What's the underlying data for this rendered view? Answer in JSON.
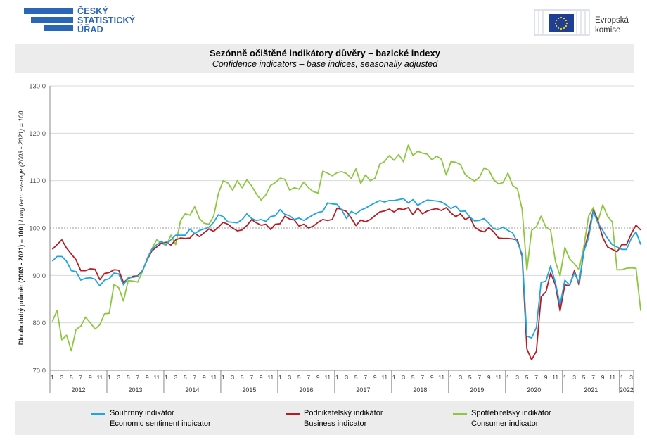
{
  "header": {
    "csu_logo_lines": [
      "ČESKÝ",
      "STATISTICKÝ",
      "ÚŘAD"
    ],
    "eu_logo_lines": [
      "Evropská",
      "komise"
    ]
  },
  "colors": {
    "economic": "#1fa6e0",
    "business": "#b71c24",
    "consumer": "#8dc63f",
    "grid": "#d9d9d9",
    "axis": "#888888"
  },
  "chart_data": {
    "type": "line",
    "title": "Sezónně očištěné indikátory důvěry – bazické indexy",
    "subtitle": "Confidence indicators – base indices, seasonally adjusted",
    "ylabel": "Dlouhodobý průměr (2003 - 2021) = 100",
    "ylabel_en": "Long term average (2003 - 2021) = 100",
    "ylim": [
      70,
      130
    ],
    "yticks": [
      "70,0",
      "80,0",
      "90,0",
      "100,0",
      "110,0",
      "120,0",
      "130,0"
    ],
    "reference_line": 100,
    "x_start": "2012-01",
    "x_end": "2022-03",
    "month_ticks": [
      "1",
      "3",
      "5",
      "7",
      "9",
      "11"
    ],
    "years": [
      "2012",
      "2013",
      "2014",
      "2015",
      "2016",
      "2017",
      "2018",
      "2019",
      "2020",
      "2021",
      "2022"
    ],
    "series": [
      {
        "name": "Souhrnný indikátor",
        "name_en": "Economic sentiment indicator",
        "color": "#1fa6e0",
        "values": [
          93.0,
          94.0,
          94.0,
          93.0,
          91.0,
          90.8,
          89.0,
          89.4,
          89.5,
          89.2,
          87.8,
          89.0,
          89.3,
          90.5,
          90.3,
          88.0,
          89.5,
          89.6,
          89.8,
          90.9,
          93.5,
          95.5,
          96.5,
          97.2,
          96.5,
          97.5,
          98.5,
          98.5,
          98.5,
          99.8,
          98.8,
          99.5,
          99.8,
          100.2,
          101.2,
          102.8,
          102.4,
          101.3,
          101.2,
          101.1,
          101.8,
          103.0,
          102.0,
          101.6,
          101.8,
          101.4,
          102.4,
          102.6,
          103.9,
          102.9,
          102.6,
          101.8,
          102.1,
          101.6,
          102.2,
          102.8,
          103.3,
          103.5,
          105.3,
          105.1,
          105.0,
          103.8,
          102.0,
          103.5,
          103.0,
          103.8,
          104.2,
          104.8,
          105.3,
          105.8,
          105.5,
          105.8,
          105.8,
          106.0,
          106.2,
          105.3,
          106.0,
          104.8,
          105.4,
          105.9,
          105.8,
          105.7,
          105.5,
          104.9,
          104.1,
          104.7,
          103.5,
          103.6,
          102.3,
          101.5,
          101.6,
          102.0,
          101.0,
          99.8,
          99.7,
          100.2,
          99.5,
          99.0,
          97.0,
          94.5,
          77.2,
          76.8,
          79.0,
          88.5,
          88.8,
          92.0,
          88.5,
          83.8,
          89.0,
          88.0,
          90.5,
          88.5,
          95.0,
          98.0,
          103.5,
          101.0,
          99.5,
          97.8,
          96.5,
          96.0,
          95.5,
          95.5,
          97.8,
          99.2,
          96.5
        ]
      },
      {
        "name": "Podnikatelský indikátor",
        "name_en": "Business indicator",
        "color": "#b71c24",
        "values": [
          95.5,
          96.5,
          97.5,
          95.8,
          94.5,
          93.3,
          91.0,
          91.0,
          91.4,
          91.3,
          89.1,
          90.4,
          90.6,
          91.2,
          91.1,
          88.5,
          89.3,
          89.8,
          89.9,
          91.0,
          93.3,
          95.2,
          96.0,
          96.8,
          97.0,
          96.4,
          97.5,
          97.9,
          97.8,
          97.9,
          98.9,
          98.2,
          99.0,
          99.8,
          99.3,
          100.2,
          101.2,
          100.8,
          100.0,
          99.4,
          99.6,
          100.5,
          101.8,
          101.1,
          100.6,
          100.8,
          99.7,
          100.8,
          100.9,
          102.5,
          101.9,
          101.7,
          100.4,
          100.8,
          100.0,
          100.4,
          101.2,
          101.8,
          101.6,
          101.8,
          104.2,
          103.9,
          103.5,
          102.1,
          100.5,
          101.7,
          101.3,
          101.8,
          102.6,
          103.4,
          103.6,
          104.0,
          103.4,
          104.1,
          103.9,
          104.3,
          102.8,
          104.2,
          103.0,
          103.6,
          103.9,
          104.1,
          103.7,
          104.3,
          103.2,
          102.4,
          103.0,
          101.8,
          102.3,
          100.2,
          99.5,
          99.2,
          100.1,
          99.2,
          97.9,
          97.8,
          97.8,
          97.7,
          97.5,
          94.0,
          74.5,
          72.2,
          74.0,
          85.5,
          86.5,
          90.5,
          88.0,
          82.5,
          88.0,
          87.8,
          91.0,
          88.0,
          95.0,
          99.0,
          103.8,
          101.5,
          98.0,
          96.0,
          95.5,
          95.0,
          96.5,
          96.5,
          98.8,
          100.6,
          99.6
        ]
      },
      {
        "name": "Spotřebitelský indikátor",
        "name_en": "Consumer indicator",
        "color": "#8dc63f",
        "values": [
          80.3,
          82.6,
          76.4,
          77.4,
          74.1,
          78.6,
          79.3,
          81.2,
          80.0,
          78.7,
          79.6,
          81.9,
          82.0,
          88.1,
          87.4,
          84.6,
          88.9,
          88.8,
          88.6,
          90.8,
          93.6,
          95.7,
          97.5,
          96.8,
          96.3,
          98.5,
          96.5,
          101.5,
          103.0,
          102.7,
          104.5,
          102.0,
          101.0,
          100.8,
          102.5,
          107.3,
          110.0,
          109.5,
          108.0,
          110.0,
          108.5,
          110.2,
          108.9,
          107.2,
          105.9,
          107.0,
          109.0,
          109.6,
          110.5,
          110.3,
          108.0,
          108.5,
          108.2,
          109.7,
          108.5,
          107.7,
          107.4,
          112.0,
          111.6,
          111.0,
          111.7,
          111.9,
          111.5,
          110.5,
          112.5,
          109.4,
          111.2,
          110.0,
          110.5,
          113.5,
          114.0,
          115.3,
          114.3,
          115.5,
          114.0,
          117.5,
          115.3,
          116.2,
          115.8,
          115.6,
          114.4,
          115.2,
          114.5,
          111.2,
          114.0,
          113.9,
          113.4,
          111.3,
          110.5,
          109.9,
          110.7,
          112.7,
          112.2,
          110.2,
          109.3,
          109.6,
          111.6,
          109.0,
          108.3,
          104.0,
          91.1,
          99.5,
          100.3,
          102.5,
          100.2,
          99.6,
          93.0,
          89.9,
          95.9,
          93.5,
          92.5,
          91.2,
          96.0,
          102.5,
          104.3,
          101.5,
          104.9,
          102.5,
          101.3,
          91.2,
          91.2,
          91.5,
          91.6,
          91.5,
          82.5
        ]
      }
    ]
  }
}
